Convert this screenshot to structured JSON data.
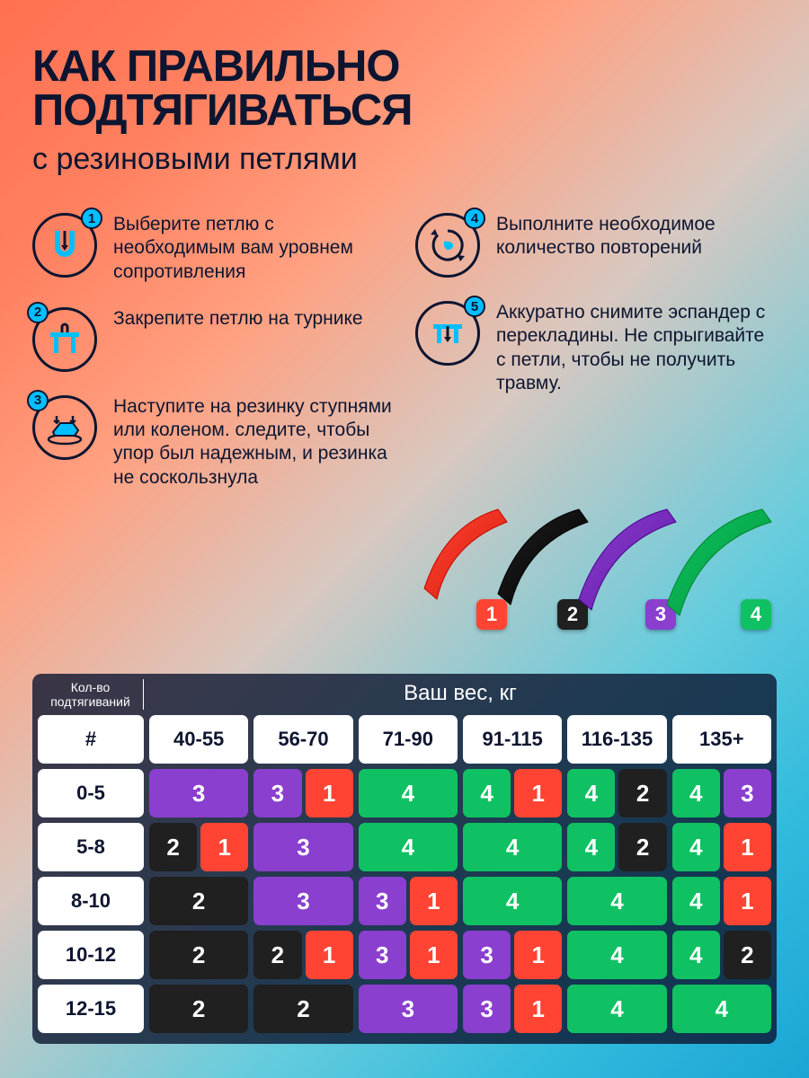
{
  "colors": {
    "red": "#ff4433",
    "black": "#202020",
    "purple": "#8a3fcf",
    "green": "#0fc163",
    "accent": "#00bfff",
    "ink": "#0d1530",
    "white": "#ffffff"
  },
  "title": "КАК ПРАВИЛЬНО ПОДТЯГИВАТЬСЯ",
  "subtitle": "с резиновыми петлями",
  "steps": [
    {
      "n": "1",
      "text": "Выберите петлю с необходимым вам уровнем сопротивления",
      "badge_pos": "tr"
    },
    {
      "n": "2",
      "text": "Закрепите петлю на турнике",
      "badge_pos": "tl"
    },
    {
      "n": "3",
      "text": "Наступите на резинку ступнями или коленом. следите, чтобы упор был надежным, и резинка не соскользнула",
      "badge_pos": "tl"
    },
    {
      "n": "4",
      "text": "Выполните необходимое количество повторений",
      "badge_pos": "tr"
    },
    {
      "n": "5",
      "text": "Аккуратно снимите эспандер с перекладины. Не спрыгивайте с петли, чтобы не получить травму.",
      "badge_pos": "tr"
    }
  ],
  "bands": [
    {
      "n": "1",
      "color": "red"
    },
    {
      "n": "2",
      "color": "black"
    },
    {
      "n": "3",
      "color": "purple"
    },
    {
      "n": "4",
      "color": "green"
    }
  ],
  "table": {
    "header_left": "Кол-во подтягиваний",
    "header_right": "Ваш вес, кг",
    "weight_cols": [
      "40-55",
      "56-70",
      "71-90",
      "91-115",
      "116-135",
      "135+"
    ],
    "row_labels": [
      "#",
      "0-5",
      "5-8",
      "8-10",
      "10-12",
      "12-15"
    ],
    "rows": [
      [
        [
          {
            "n": "3",
            "c": "purple"
          }
        ],
        [
          {
            "n": "3",
            "c": "purple"
          },
          {
            "n": "1",
            "c": "red"
          }
        ],
        [
          {
            "n": "4",
            "c": "green"
          }
        ],
        [
          {
            "n": "4",
            "c": "green"
          },
          {
            "n": "1",
            "c": "red"
          }
        ],
        [
          {
            "n": "4",
            "c": "green"
          },
          {
            "n": "2",
            "c": "black"
          }
        ],
        [
          {
            "n": "4",
            "c": "green"
          },
          {
            "n": "3",
            "c": "purple"
          }
        ]
      ],
      [
        [
          {
            "n": "2",
            "c": "black"
          },
          {
            "n": "1",
            "c": "red"
          }
        ],
        [
          {
            "n": "3",
            "c": "purple"
          }
        ],
        [
          {
            "n": "4",
            "c": "green"
          }
        ],
        [
          {
            "n": "4",
            "c": "green"
          }
        ],
        [
          {
            "n": "4",
            "c": "green"
          },
          {
            "n": "2",
            "c": "black"
          }
        ],
        [
          {
            "n": "4",
            "c": "green"
          },
          {
            "n": "1",
            "c": "red"
          }
        ]
      ],
      [
        [
          {
            "n": "2",
            "c": "black"
          }
        ],
        [
          {
            "n": "3",
            "c": "purple"
          }
        ],
        [
          {
            "n": "3",
            "c": "purple"
          },
          {
            "n": "1",
            "c": "red"
          }
        ],
        [
          {
            "n": "4",
            "c": "green"
          }
        ],
        [
          {
            "n": "4",
            "c": "green"
          }
        ],
        [
          {
            "n": "4",
            "c": "green"
          },
          {
            "n": "1",
            "c": "red"
          }
        ]
      ],
      [
        [
          {
            "n": "2",
            "c": "black"
          }
        ],
        [
          {
            "n": "2",
            "c": "black"
          },
          {
            "n": "1",
            "c": "red"
          }
        ],
        [
          {
            "n": "3",
            "c": "purple"
          },
          {
            "n": "1",
            "c": "red"
          }
        ],
        [
          {
            "n": "3",
            "c": "purple"
          },
          {
            "n": "1",
            "c": "red"
          }
        ],
        [
          {
            "n": "4",
            "c": "green"
          }
        ],
        [
          {
            "n": "4",
            "c": "green"
          },
          {
            "n": "2",
            "c": "black"
          }
        ]
      ],
      [
        [
          {
            "n": "2",
            "c": "black"
          }
        ],
        [
          {
            "n": "2",
            "c": "black"
          }
        ],
        [
          {
            "n": "3",
            "c": "purple"
          }
        ],
        [
          {
            "n": "3",
            "c": "purple"
          },
          {
            "n": "1",
            "c": "red"
          }
        ],
        [
          {
            "n": "4",
            "c": "green"
          }
        ],
        [
          {
            "n": "4",
            "c": "green"
          }
        ]
      ]
    ]
  }
}
